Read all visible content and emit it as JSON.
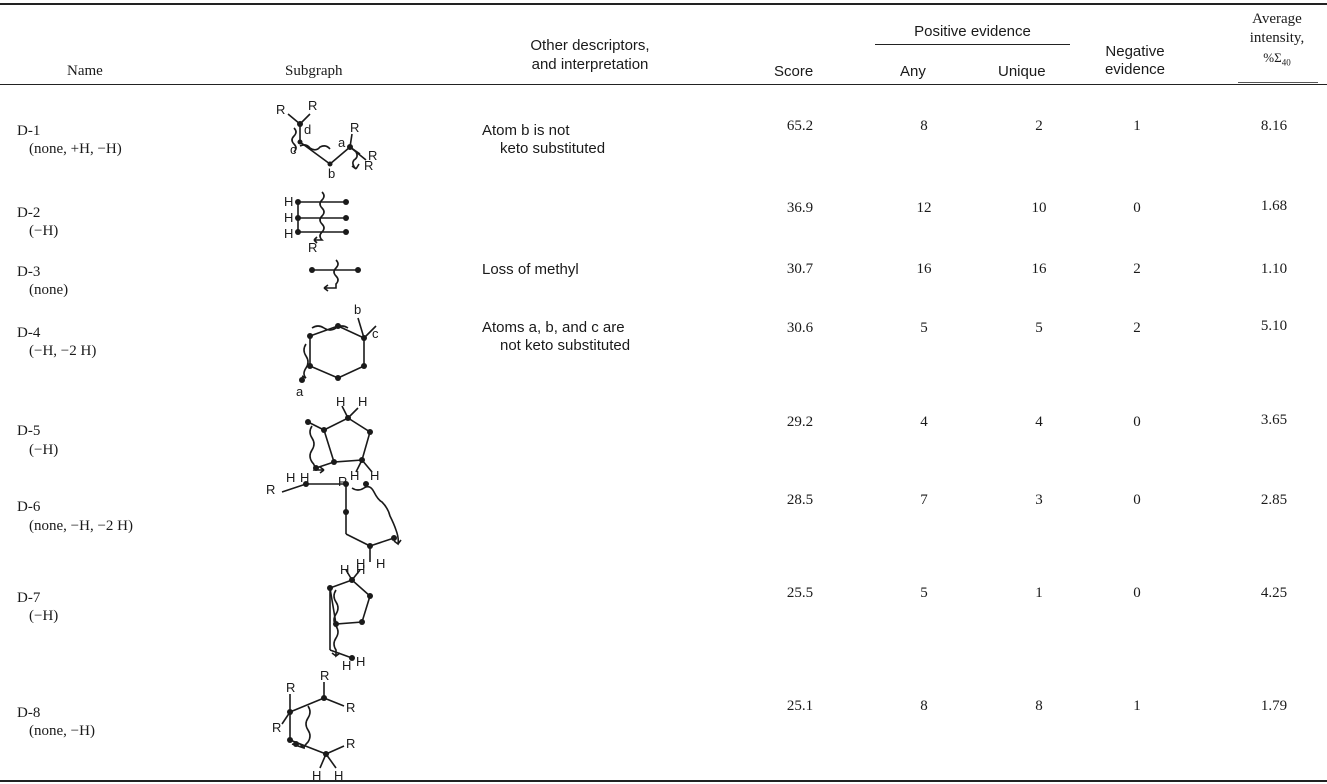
{
  "table": {
    "headers": {
      "name": "Name",
      "subgraph": "Subgraph",
      "other_line1": "Other descriptors,",
      "other_line2": "and interpretation",
      "score": "Score",
      "positive": "Positive evidence",
      "any": "Any",
      "unique": "Unique",
      "negative_line1": "Negative",
      "negative_line2": "evidence",
      "avg_line1": "Average",
      "avg_line2": "intensity,",
      "avg_line3": "%Σ",
      "avg_sub": "40"
    },
    "rows": [
      {
        "name": "D-1",
        "sub": "(none, +H, −H)",
        "interp1": "Atom b is not",
        "interp2": "keto substituted",
        "score": "65.2",
        "any": "8",
        "unique": "2",
        "negative": "1",
        "avg": "8.16"
      },
      {
        "name": "D-2",
        "sub": "(−H)",
        "interp1": "",
        "interp2": "",
        "score": "36.9",
        "any": "12",
        "unique": "10",
        "negative": "0",
        "avg": "1.68"
      },
      {
        "name": "D-3",
        "sub": "(none)",
        "interp1": "Loss of methyl",
        "interp2": "",
        "score": "30.7",
        "any": "16",
        "unique": "16",
        "negative": "2",
        "avg": "1.10"
      },
      {
        "name": "D-4",
        "sub": "(−H, −2 H)",
        "interp1": "Atoms a, b, and c are",
        "interp2": "not keto substituted",
        "score": "30.6",
        "any": "5",
        "unique": "5",
        "negative": "2",
        "avg": "5.10"
      },
      {
        "name": "D-5",
        "sub": "(−H)",
        "interp1": "",
        "interp2": "",
        "score": "29.2",
        "any": "4",
        "unique": "4",
        "negative": "0",
        "avg": "3.65"
      },
      {
        "name": "D-6",
        "sub": "(none, −H, −2 H)",
        "interp1": "",
        "interp2": "",
        "score": "28.5",
        "any": "7",
        "unique": "3",
        "negative": "0",
        "avg": "2.85"
      },
      {
        "name": "D-7",
        "sub": "(−H)",
        "interp1": "",
        "interp2": "",
        "score": "25.5",
        "any": "5",
        "unique": "1",
        "negative": "0",
        "avg": "4.25"
      },
      {
        "name": "D-8",
        "sub": "(none, −H)",
        "interp1": "",
        "interp2": "",
        "score": "25.1",
        "any": "8",
        "unique": "8",
        "negative": "1",
        "avg": "1.79"
      }
    ],
    "atom_labels": {
      "r": "R",
      "h": "H",
      "a": "a",
      "b": "b",
      "c": "c"
    }
  }
}
